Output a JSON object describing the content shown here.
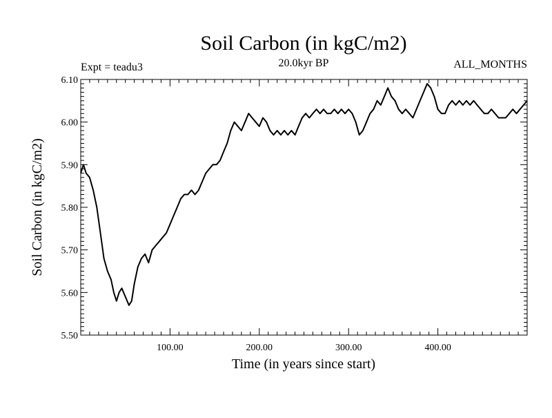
{
  "chart_data": {
    "type": "line",
    "title": "Soil Carbon (in kgC/m2)",
    "subtitle": "20.0kyr BP",
    "experiment_label": "Expt = teadu3",
    "period_label": "ALL_MONTHS",
    "xlabel": "Time (in years since start)",
    "ylabel": "Soil Carbon (in kgC/m2)",
    "xlim": [
      0,
      500
    ],
    "ylim": [
      5.5,
      6.1
    ],
    "x_ticks": [
      100,
      200,
      300,
      400
    ],
    "x_tick_labels": [
      "100.00",
      "200.00",
      "300.00",
      "400.00"
    ],
    "y_ticks": [
      5.5,
      5.6,
      5.7,
      5.8,
      5.9,
      6.0,
      6.1
    ],
    "y_tick_labels": [
      "5.50",
      "5.60",
      "5.70",
      "5.80",
      "5.90",
      "6.00",
      "6.10"
    ],
    "grid": false,
    "series": [
      {
        "name": "Soil Carbon",
        "color": "#000000",
        "x": [
          0,
          3,
          6,
          10,
          14,
          18,
          22,
          26,
          30,
          34,
          37,
          40,
          43,
          46,
          50,
          54,
          57,
          60,
          64,
          68,
          72,
          76,
          80,
          84,
          88,
          92,
          96,
          100,
          104,
          108,
          112,
          116,
          120,
          124,
          128,
          132,
          136,
          140,
          144,
          148,
          152,
          156,
          160,
          164,
          168,
          172,
          176,
          180,
          184,
          188,
          192,
          196,
          200,
          204,
          208,
          212,
          216,
          220,
          224,
          228,
          232,
          236,
          240,
          244,
          248,
          252,
          256,
          260,
          264,
          268,
          272,
          276,
          280,
          284,
          288,
          292,
          296,
          300,
          304,
          308,
          312,
          316,
          320,
          324,
          328,
          332,
          336,
          340,
          344,
          348,
          352,
          356,
          360,
          364,
          368,
          372,
          376,
          380,
          384,
          388,
          392,
          396,
          400,
          404,
          408,
          412,
          416,
          420,
          424,
          428,
          432,
          436,
          440,
          444,
          448,
          452,
          456,
          460,
          464,
          468,
          472,
          476,
          480,
          484,
          488,
          492,
          496,
          500
        ],
        "values": [
          5.88,
          5.9,
          5.88,
          5.87,
          5.84,
          5.8,
          5.74,
          5.68,
          5.65,
          5.63,
          5.6,
          5.58,
          5.6,
          5.61,
          5.59,
          5.57,
          5.58,
          5.62,
          5.66,
          5.68,
          5.69,
          5.67,
          5.7,
          5.71,
          5.72,
          5.73,
          5.74,
          5.76,
          5.78,
          5.8,
          5.82,
          5.83,
          5.83,
          5.84,
          5.83,
          5.84,
          5.86,
          5.88,
          5.89,
          5.9,
          5.9,
          5.91,
          5.93,
          5.95,
          5.98,
          6.0,
          5.99,
          5.98,
          6.0,
          6.02,
          6.01,
          6.0,
          5.99,
          6.01,
          6.0,
          5.98,
          5.97,
          5.98,
          5.97,
          5.98,
          5.97,
          5.98,
          5.97,
          5.99,
          6.01,
          6.02,
          6.01,
          6.02,
          6.03,
          6.02,
          6.03,
          6.02,
          6.02,
          6.03,
          6.02,
          6.03,
          6.02,
          6.03,
          6.02,
          6.0,
          5.97,
          5.98,
          6.0,
          6.02,
          6.03,
          6.05,
          6.04,
          6.06,
          6.08,
          6.06,
          6.05,
          6.03,
          6.02,
          6.03,
          6.02,
          6.01,
          6.03,
          6.05,
          6.07,
          6.09,
          6.08,
          6.06,
          6.03,
          6.02,
          6.02,
          6.04,
          6.05,
          6.04,
          6.05,
          6.04,
          6.05,
          6.04,
          6.05,
          6.04,
          6.03,
          6.02,
          6.02,
          6.03,
          6.02,
          6.01,
          6.01,
          6.01,
          6.02,
          6.03,
          6.02,
          6.03,
          6.04,
          6.05
        ]
      }
    ]
  }
}
